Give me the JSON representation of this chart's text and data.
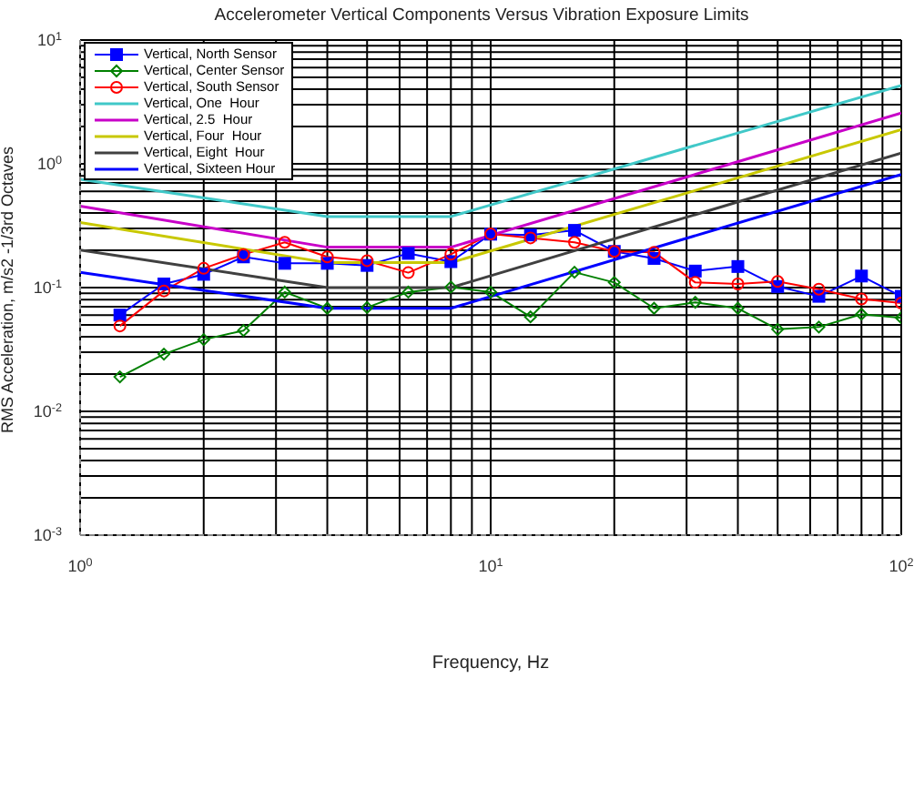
{
  "chart_data": {
    "type": "line",
    "title": "Accelerometer Vertical Components Versus Vibration Exposure Limits",
    "xlabel": "Frequency, Hz",
    "ylabel": "RMS Acceleration, m/s2 -1/3rd Octaves",
    "log": "xy",
    "grid": true,
    "legend": "top left",
    "xlim": [
      1,
      100
    ],
    "ylim": [
      0.001,
      10
    ],
    "xticks": [
      {
        "value": 1,
        "label": "10$^{0}$"
      },
      {
        "value": 2,
        "label": null
      },
      {
        "value": 3,
        "label": null
      },
      {
        "value": 4,
        "label": null
      },
      {
        "value": 5,
        "label": null
      },
      {
        "value": 6,
        "label": null
      },
      {
        "value": 7,
        "label": null
      },
      {
        "value": 8,
        "label": null
      },
      {
        "value": 9,
        "label": null
      },
      {
        "value": 10,
        "label": "10$^{1}$"
      },
      {
        "value": 20,
        "label": null
      },
      {
        "value": 30,
        "label": null
      },
      {
        "value": 40,
        "label": null
      },
      {
        "value": 50,
        "label": null
      },
      {
        "value": 60,
        "label": null
      },
      {
        "value": 70,
        "label": null
      },
      {
        "value": 80,
        "label": null
      },
      {
        "value": 90,
        "label": null
      },
      {
        "value": 100,
        "label": "10$^{2}$"
      }
    ],
    "yticks": [
      {
        "value": 0.001,
        "label": "10$^{-3}$"
      },
      {
        "value": 0.002,
        "label": null
      },
      {
        "value": 0.003,
        "label": null
      },
      {
        "value": 0.004,
        "label": null
      },
      {
        "value": 0.005,
        "label": null
      },
      {
        "value": 0.006,
        "label": null
      },
      {
        "value": 0.007,
        "label": null
      },
      {
        "value": 0.008,
        "label": null
      },
      {
        "value": 0.009,
        "label": null
      },
      {
        "value": 0.01,
        "label": "10$^{-2}$"
      },
      {
        "value": 0.02,
        "label": null
      },
      {
        "value": 0.03,
        "label": null
      },
      {
        "value": 0.04,
        "label": null
      },
      {
        "value": 0.05,
        "label": null
      },
      {
        "value": 0.06,
        "label": null
      },
      {
        "value": 0.07,
        "label": null
      },
      {
        "value": 0.08,
        "label": null
      },
      {
        "value": 0.09,
        "label": null
      },
      {
        "value": 0.1,
        "label": "10$^{-1}$"
      },
      {
        "value": 0.2,
        "label": null
      },
      {
        "value": 0.3,
        "label": null
      },
      {
        "value": 0.4,
        "label": null
      },
      {
        "value": 0.5,
        "label": null
      },
      {
        "value": 0.6,
        "label": null
      },
      {
        "value": 0.7,
        "label": null
      },
      {
        "value": 0.8,
        "label": null
      },
      {
        "value": 0.9,
        "label": null
      },
      {
        "value": 1,
        "label": "10$^{0}$"
      },
      {
        "value": 2,
        "label": null
      },
      {
        "value": 3,
        "label": null
      },
      {
        "value": 4,
        "label": null
      },
      {
        "value": 5,
        "label": null
      },
      {
        "value": 6,
        "label": null
      },
      {
        "value": 7,
        "label": null
      },
      {
        "value": 8,
        "label": null
      },
      {
        "value": 9,
        "label": null
      },
      {
        "value": 10,
        "label": "10$^{1}$"
      }
    ],
    "series": [
      {
        "name": "Vertical, North Sensor",
        "color": "#0000ff",
        "marker": "square",
        "x": [
          1.25,
          1.6,
          2,
          2.5,
          3.15,
          4,
          5,
          6.3,
          8,
          10,
          12.5,
          16,
          20,
          25,
          31.5,
          40,
          50,
          63,
          80,
          100
        ],
        "values": [
          0.06,
          0.107,
          0.128,
          0.177,
          0.157,
          0.157,
          0.151,
          0.189,
          0.162,
          0.27,
          0.266,
          0.29,
          0.196,
          0.172,
          0.136,
          0.148,
          0.102,
          0.085,
          0.124,
          0.085
        ]
      },
      {
        "name": "Vertical, Center Sensor",
        "color": "#008000",
        "marker": "diamond",
        "x": [
          1.25,
          1.6,
          2,
          2.5,
          3.15,
          4,
          5,
          6.3,
          8,
          10,
          12.5,
          16,
          20,
          25,
          31.5,
          40,
          50,
          63,
          80,
          100
        ],
        "values": [
          0.019,
          0.029,
          0.038,
          0.045,
          0.092,
          0.068,
          0.069,
          0.092,
          0.101,
          0.092,
          0.058,
          0.133,
          0.11,
          0.068,
          0.076,
          0.068,
          0.046,
          0.048,
          0.061,
          0.057
        ]
      },
      {
        "name": "Vertical, South Sensor",
        "color": "#ff0000",
        "marker": "circle",
        "x": [
          1.25,
          1.6,
          2,
          2.5,
          3.15,
          4,
          5,
          6.3,
          8,
          10,
          12.5,
          16,
          20,
          25,
          31.5,
          40,
          50,
          63,
          80,
          100
        ],
        "values": [
          0.049,
          0.094,
          0.143,
          0.185,
          0.232,
          0.177,
          0.165,
          0.132,
          0.186,
          0.271,
          0.252,
          0.232,
          0.196,
          0.193,
          0.11,
          0.107,
          0.112,
          0.097,
          0.081,
          0.075
        ]
      },
      {
        "name": "Vertical, One  Hour",
        "color": "#40c8c8",
        "marker": "none",
        "x": [
          1,
          4,
          8,
          100
        ],
        "values": [
          0.75,
          0.375,
          0.375,
          4.3
        ]
      },
      {
        "name": "Vertical, 2.5  Hour",
        "color": "#c800c8",
        "marker": "none",
        "x": [
          1,
          4,
          8,
          100
        ],
        "values": [
          0.455,
          0.212,
          0.212,
          2.57
        ]
      },
      {
        "name": "Vertical, Four  Hour",
        "color": "#c8c800",
        "marker": "none",
        "x": [
          1,
          4,
          8,
          100
        ],
        "values": [
          0.335,
          0.159,
          0.159,
          1.89
        ]
      },
      {
        "name": "Vertical, Eight  Hour",
        "color": "#404040",
        "marker": "none",
        "x": [
          1,
          4,
          8,
          100
        ],
        "values": [
          0.201,
          0.1,
          0.1,
          1.22
        ]
      },
      {
        "name": "Vertical, Sixteen Hour",
        "color": "#0000ff",
        "marker": "none",
        "x": [
          1,
          4,
          8,
          100
        ],
        "values": [
          0.133,
          0.068,
          0.068,
          0.82
        ]
      }
    ]
  }
}
